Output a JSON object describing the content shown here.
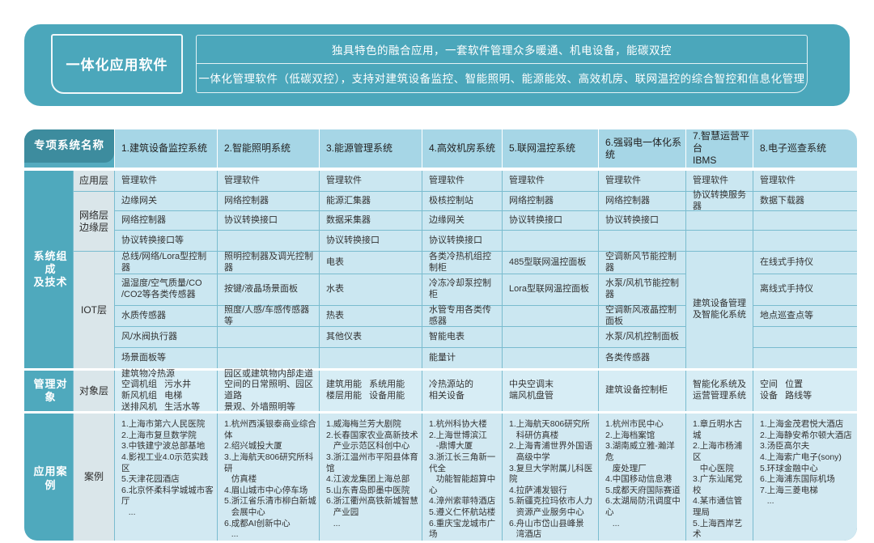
{
  "banner": {
    "title": "一体化应用软件",
    "line1": "独具特色的融合应用，一套软件管理众多暖通、机电设备，能碳双控",
    "line2": "一体化管理软件（低碳双控），支持对建筑设备监控、智能照明、能源能效、高效机房、联网温控的综合智控和信息化管理"
  },
  "table": {
    "corner_label": "专项系统名称",
    "section_labels": {
      "composition": "系统组成\n及技术",
      "management": "管理对象",
      "cases": "应用案例"
    },
    "layer_labels": {
      "app": "应用层",
      "network": "网络层\n边缘层",
      "iot": "IOT层",
      "object": "对象层",
      "case": "案例"
    },
    "columns": [
      {
        "header": "1.建筑设备监控系统",
        "app": "管理软件",
        "network": [
          "边缘网关",
          "网络控制器",
          "协议转换接口等"
        ],
        "iot": [
          "总线/网络/Lora型控制器",
          "温湿度/空气质量/CO\n/CO2等各类传感器",
          "水质传感器",
          "风/水阀执行器",
          "场景面板等"
        ],
        "object": "建筑物冷热源\n空调机组   污水井\n新风机组   电梯\n送排风机   生活水等",
        "cases": "1.上海市第六人民医院\n2.上海市复旦数学院\n3.中铁建宁波总部基地\n4.影视工业4.0示范实践区\n5.天津花园酒店\n6.北京怀柔科学城城市客厅\n   ..."
      },
      {
        "header": "2.智能照明系统",
        "app": "管理软件",
        "network": [
          "网络控制器",
          "协议转换接口",
          ""
        ],
        "iot": [
          "照明控制器及调光控制器",
          "按键/液晶场景面板",
          "照度/人感/车感传感器等",
          "",
          ""
        ],
        "object": "园区或建筑物内部走道\n空间的日常照明、园区道路\n景观、外墙照明等",
        "cases": "1.杭州西溪银泰商业综合体\n2.绍兴城投大厦\n3.上海航天806研究所科研\n   仿真楼\n4.眉山城市中心停车场\n5.浙江省乐清市柳白新城\n   会展中心\n6.成都AI创新中心\n   ..."
      },
      {
        "header": "3.能源管理系统",
        "app": "管理软件",
        "network": [
          "能源汇集器",
          "数据采集器",
          "协议转换接口"
        ],
        "iot": [
          "电表",
          "水表",
          "热表",
          "其他仪表",
          ""
        ],
        "object": "建筑用能   系统用能\n楼层用能   设备用能",
        "cases": "1.威海梅兰芳大剧院\n2.长春国家农业高新技术\n   产业示范区科创中心\n3.浙江温州市平阳县体育馆\n4.江波龙集团上海总部\n5.山东青岛即墨中医院\n6.浙江衢州高铁新城智慧\n   产业园\n   ..."
      },
      {
        "header": "4.高效机房系统",
        "app": "管理软件",
        "network": [
          "极核控制站",
          "边缘网关",
          "协议转换接口"
        ],
        "iot": [
          "各类冷热机组控制柜",
          "冷冻冷却泵控制柜",
          "水管专用各类传感器",
          "智能电表",
          "能量计"
        ],
        "object": "冷热源站的\n相关设备",
        "cases": "1.杭州科协大楼\n2.上海世博滨江\n   -鼎博大厦\n3.浙江长三角新一代全\n   功能智能超算中心\n4.漳州索菲特酒店\n5.遵义仁怀航站楼\n6.重庆宝龙城市广场\n   ..."
      },
      {
        "header": "5.联网温控系统",
        "app": "管理软件",
        "network": [
          "网络控制器",
          "协议转换接口",
          ""
        ],
        "iot": [
          "485型联网温控面板",
          "Lora型联网温控面板",
          "",
          "",
          ""
        ],
        "object": "中央空调末\n端风机盘管",
        "cases": "1.上海航天806研究所\n   科研仿真楼\n2.上海青浦世界外国语\n   高级中学\n3.复旦大学附属儿科医院\n4.拉萨浦发银行\n5.新疆克拉玛依市人力\n   资源产业服务中心\n6.舟山市岱山县峰景\n   湾酒店\n   ..."
      },
      {
        "header": "6.强弱电一体化系统",
        "app": "管理软件",
        "network": [
          "网络控制器",
          "协议转换接口",
          ""
        ],
        "iot": [
          "空调新风节能控制器",
          "水泵/风机节能控制器",
          "空调新风液晶控制面板",
          "水泵/风机控制面板",
          "各类传感器"
        ],
        "object": "建筑设备控制柜",
        "cases": "1.杭州市民中心\n2.上海档案馆\n3.湖南威立雅-瀚洋危\n   废处理厂\n4.中国移动信息港\n5.成都天府国际赛道\n6.太湖局防汛调度中心\n   ..."
      },
      {
        "header": "7.智慧运营平台\nIBMS",
        "app": "管理软件",
        "network": [
          "协议转换服务器",
          "",
          ""
        ],
        "iot_merged": "建筑设备管理\n及智能化系统",
        "object": "智能化系统及\n运营管理系统",
        "cases": "1.章丘明水古城\n2.上海市杨浦区\n   中心医院\n3.广东汕尾党校\n4.某市通信管理局\n5.上海西岸艺术\n   中心\n   ..."
      },
      {
        "header": "8.电子巡查系统",
        "app": "管理软件",
        "network": [
          "数据下载器",
          "",
          ""
        ],
        "iot": [
          "在线式手持仪",
          "离线式手持仪",
          "地点巡查点等",
          "",
          ""
        ],
        "object": "空间   位置\n设备   路线等",
        "cases": "1.上海金茂君悦大酒店\n2.上海静安希尔顿大酒店\n3.汤臣高尔夫\n4.上海索广电子(sony)\n5.环球金融中心\n6.上海浦东国际机场\n7.上海三菱电梯\n   ..."
      }
    ]
  },
  "colors": {
    "banner_bg": "#4BA7BB",
    "corner_dark": "#3D8C9E",
    "side_label": "#4FA9BD",
    "sublabel_bg": "#DAE6EA",
    "column_header_bg": "#A6D6E6",
    "body_bg": "#CBE7F1",
    "object_row_bg": "#D7EDF5",
    "cases_row_bg": "#D2E9F2",
    "grid_line": "#7ABCCF",
    "text": "#333333"
  }
}
